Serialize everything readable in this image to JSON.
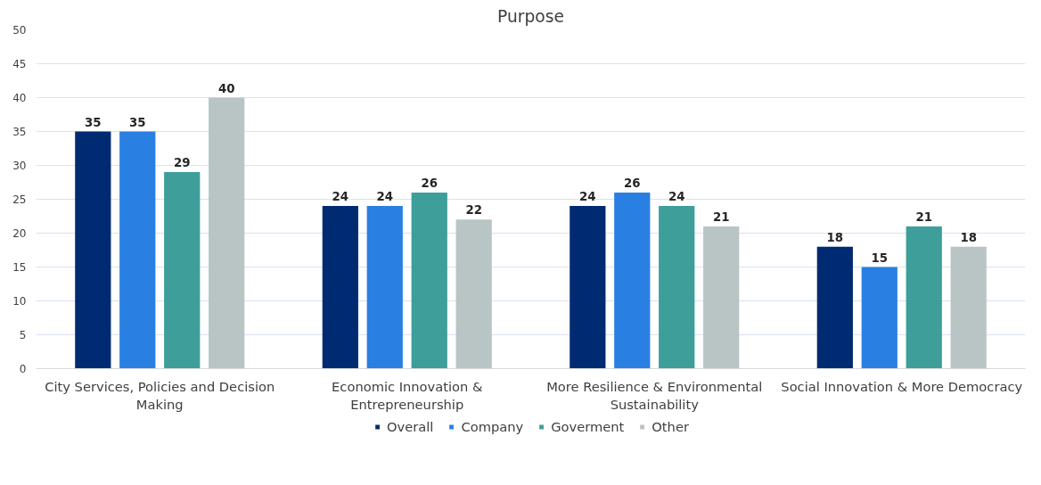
{
  "chart_data": {
    "type": "bar",
    "title": "Purpose",
    "categories": [
      "City Services, Policies and Decision Making",
      "Economic Innovation & Entrepreneurship",
      "More Resilience & Environmental Sustainability",
      "Social Innovation & More Democracy"
    ],
    "series": [
      {
        "name": "Overall",
        "color": "#002b72",
        "values": [
          35,
          24,
          24,
          18
        ]
      },
      {
        "name": "Company",
        "color": "#2a7fe3",
        "values": [
          35,
          24,
          26,
          15
        ]
      },
      {
        "name": "Goverment",
        "color": "#3d9e9a",
        "values": [
          29,
          26,
          24,
          21
        ]
      },
      {
        "name": "Other",
        "color": "#b9c4c4",
        "values": [
          40,
          22,
          21,
          18
        ]
      }
    ],
    "ylim": [
      0,
      50
    ],
    "yticks": [
      0,
      5,
      10,
      15,
      20,
      25,
      30,
      35,
      40,
      45,
      50
    ],
    "grid": "y",
    "legend": "bottom",
    "data_labels": true
  }
}
